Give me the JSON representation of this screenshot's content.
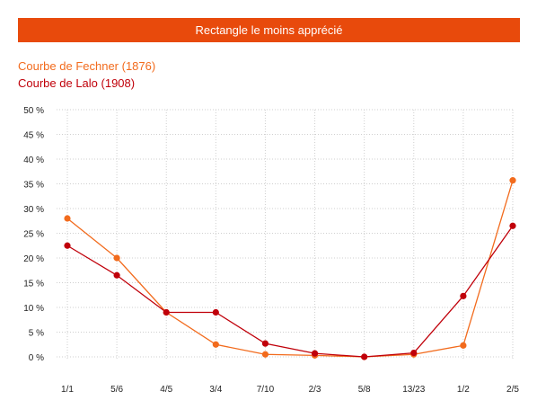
{
  "chart_data": {
    "type": "line",
    "title": "Rectangle le moins apprécié",
    "categories": [
      "1/1",
      "5/6",
      "4/5",
      "3/4",
      "7/10",
      "2/3",
      "5/8",
      "13/23",
      "1/2",
      "2/5"
    ],
    "highlight_category": "5/8",
    "highlight_color": "#e84a0c",
    "ylim": [
      0,
      50
    ],
    "yticks": [
      "0 %",
      "5 %",
      "10 %",
      "15 %",
      "20 %",
      "25 %",
      "30 %",
      "35 %",
      "40 %",
      "45 %",
      "50 %"
    ],
    "grid": true,
    "series": [
      {
        "name": "Courbe de Fechner (1876)",
        "color": "#f26b1d",
        "values": [
          28.0,
          20.0,
          9.0,
          2.5,
          0.5,
          0.3,
          0.0,
          0.5,
          2.3,
          35.7
        ]
      },
      {
        "name": "Courbe de Lalo (1908)",
        "color": "#c0000a",
        "values": [
          22.5,
          16.5,
          9.0,
          9.0,
          2.7,
          0.7,
          0.0,
          0.8,
          12.3,
          26.5
        ]
      }
    ]
  }
}
